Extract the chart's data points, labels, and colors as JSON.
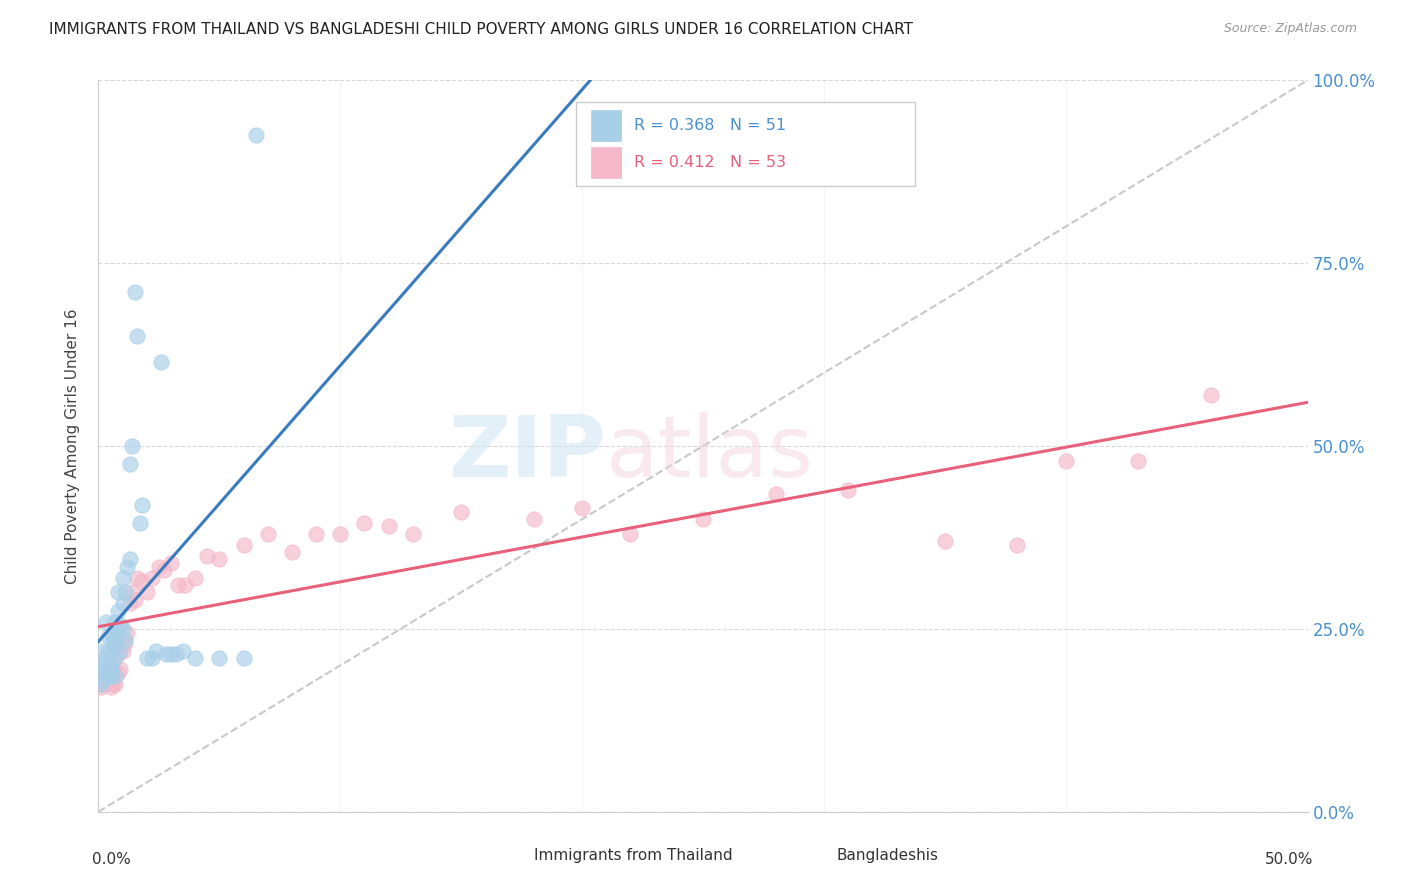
{
  "title": "IMMIGRANTS FROM THAILAND VS BANGLADESHI CHILD POVERTY AMONG GIRLS UNDER 16 CORRELATION CHART",
  "source": "Source: ZipAtlas.com",
  "ylabel": "Child Poverty Among Girls Under 16",
  "ytick_labels": [
    "0.0%",
    "25.0%",
    "50.0%",
    "75.0%",
    "100.0%"
  ],
  "ytick_values": [
    0.0,
    0.25,
    0.5,
    0.75,
    1.0
  ],
  "xlim": [
    0.0,
    0.5
  ],
  "ylim": [
    0.0,
    1.0
  ],
  "legend_r1": "R = 0.368",
  "legend_n1": "N = 51",
  "legend_r2": "R = 0.412",
  "legend_n2": "N = 53",
  "legend_label1": "Immigrants from Thailand",
  "legend_label2": "Bangladeshis",
  "color_blue": "#a8cfe8",
  "color_pink": "#f4b8c8",
  "color_blue_line": "#3a7abf",
  "color_pink_line": "#e8607a",
  "color_blue_text": "#4a90d0",
  "color_pink_text": "#e8607a",
  "color_diag": "#bbbbbb",
  "background_color": "#ffffff",
  "thailand_x": [
    0.001,
    0.001,
    0.002,
    0.002,
    0.002,
    0.003,
    0.003,
    0.003,
    0.004,
    0.004,
    0.004,
    0.005,
    0.005,
    0.005,
    0.006,
    0.006,
    0.006,
    0.007,
    0.007,
    0.007,
    0.007,
    0.008,
    0.008,
    0.008,
    0.009,
    0.009,
    0.01,
    0.01,
    0.01,
    0.011,
    0.011,
    0.012,
    0.013,
    0.013,
    0.014,
    0.015,
    0.016,
    0.017,
    0.018,
    0.02,
    0.022,
    0.024,
    0.026,
    0.028,
    0.03,
    0.032,
    0.035,
    0.04,
    0.05,
    0.06,
    0.065
  ],
  "thailand_y": [
    0.175,
    0.195,
    0.18,
    0.2,
    0.22,
    0.195,
    0.21,
    0.26,
    0.22,
    0.24,
    0.19,
    0.185,
    0.2,
    0.195,
    0.22,
    0.235,
    0.24,
    0.185,
    0.21,
    0.23,
    0.26,
    0.24,
    0.275,
    0.3,
    0.22,
    0.255,
    0.25,
    0.285,
    0.32,
    0.235,
    0.3,
    0.335,
    0.345,
    0.475,
    0.5,
    0.71,
    0.65,
    0.395,
    0.42,
    0.21,
    0.21,
    0.22,
    0.615,
    0.215,
    0.215,
    0.215,
    0.22,
    0.21,
    0.21,
    0.21,
    0.925
  ],
  "bangladesh_x": [
    0.001,
    0.002,
    0.002,
    0.003,
    0.003,
    0.004,
    0.004,
    0.005,
    0.005,
    0.006,
    0.006,
    0.007,
    0.008,
    0.008,
    0.009,
    0.01,
    0.011,
    0.012,
    0.013,
    0.014,
    0.015,
    0.016,
    0.018,
    0.02,
    0.022,
    0.025,
    0.027,
    0.03,
    0.033,
    0.036,
    0.04,
    0.045,
    0.05,
    0.06,
    0.07,
    0.08,
    0.09,
    0.1,
    0.11,
    0.12,
    0.13,
    0.15,
    0.18,
    0.2,
    0.22,
    0.25,
    0.28,
    0.31,
    0.35,
    0.38,
    0.4,
    0.43,
    0.46
  ],
  "bangladesh_y": [
    0.17,
    0.175,
    0.18,
    0.185,
    0.19,
    0.175,
    0.19,
    0.17,
    0.185,
    0.175,
    0.195,
    0.175,
    0.19,
    0.215,
    0.195,
    0.22,
    0.23,
    0.245,
    0.285,
    0.3,
    0.29,
    0.32,
    0.315,
    0.3,
    0.32,
    0.335,
    0.33,
    0.34,
    0.31,
    0.31,
    0.32,
    0.35,
    0.345,
    0.365,
    0.38,
    0.355,
    0.38,
    0.38,
    0.395,
    0.39,
    0.38,
    0.41,
    0.4,
    0.415,
    0.38,
    0.4,
    0.435,
    0.44,
    0.37,
    0.365,
    0.48,
    0.48,
    0.57
  ]
}
